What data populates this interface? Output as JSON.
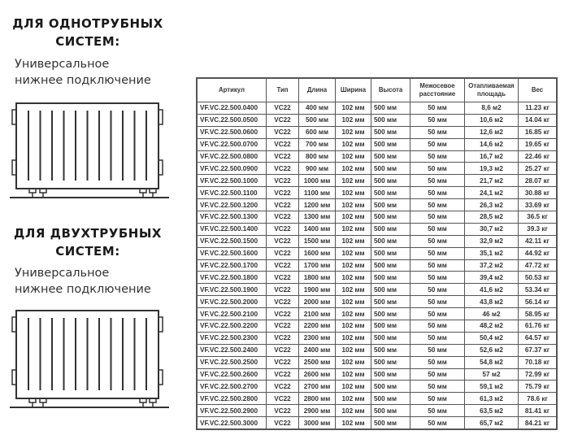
{
  "single_pipe": {
    "heading_line1": "ДЛЯ ОДНОТРУБНЫХ",
    "heading_line2": "СИСТЕМ:",
    "sub_line1": "Универсальное",
    "sub_line2": "нижнее подключение"
  },
  "double_pipe": {
    "heading_line1": "ДЛЯ ДВУХТРУБНЫХ",
    "heading_line2": "СИСТЕМ:",
    "sub_line1": "Универсальное",
    "sub_line2": "нижнее подключение"
  },
  "table": {
    "headers": [
      "Артикул",
      "Тип",
      "Длина",
      "Ширина",
      "Высота",
      "Межосевое расстояние",
      "Отапливаемая площадь",
      "Вес"
    ],
    "rows": [
      [
        "VF.VC.22.500.0400",
        "VC22",
        "400 мм",
        "102 мм",
        "500 мм",
        "50 мм",
        "8,6 м2",
        "11.23 кг"
      ],
      [
        "VF.VC.22.500.0500",
        "VC22",
        "500 мм",
        "102 мм",
        "500 мм",
        "50 мм",
        "10,6 м2",
        "14.04 кг"
      ],
      [
        "VF.VC.22.500.0600",
        "VC22",
        "600 мм",
        "102 мм",
        "500 мм",
        "50 мм",
        "12,6 м2",
        "16.85 кг"
      ],
      [
        "VF.VC.22.500.0700",
        "VC22",
        "700 мм",
        "102 мм",
        "500 мм",
        "50 мм",
        "14,6 м2",
        "19.65 кг"
      ],
      [
        "VF.VC.22.500.0800",
        "VC22",
        "800 мм",
        "102 мм",
        "500 мм",
        "50 мм",
        "16,7 м2",
        "22.46 кг"
      ],
      [
        "VF.VC.22.500.0900",
        "VC22",
        "900 мм",
        "102 мм",
        "500 мм",
        "50 мм",
        "19,3 м2",
        "25.27 кг"
      ],
      [
        "VF.VC.22.500.1000",
        "VC22",
        "1000 мм",
        "102 мм",
        "500 мм",
        "50 мм",
        "21,7 м2",
        "28.07 кг"
      ],
      [
        "VF.VC.22.500.1100",
        "VC22",
        "1100 мм",
        "102 мм",
        "500 мм",
        "50 мм",
        "24,1 м2",
        "30.88 кг"
      ],
      [
        "VF.VC.22.500.1200",
        "VC22",
        "1200 мм",
        "102 мм",
        "500 мм",
        "50 мм",
        "26,3 м2",
        "33.69 кг"
      ],
      [
        "VF.VC.22.500.1300",
        "VC22",
        "1300 мм",
        "102 мм",
        "500 мм",
        "50 мм",
        "28,5 м2",
        "36.5 кг"
      ],
      [
        "VF.VC.22.500.1400",
        "VC22",
        "1400 мм",
        "102 мм",
        "500 мм",
        "50 мм",
        "30,7 м2",
        "39.3 кг"
      ],
      [
        "VF.VC.22.500.1500",
        "VC22",
        "1500 мм",
        "102 мм",
        "500 мм",
        "50 мм",
        "32,9 м2",
        "42.11 кг"
      ],
      [
        "VF.VC.22.500.1600",
        "VC22",
        "1600 мм",
        "102 мм",
        "500 мм",
        "50 мм",
        "35,1 м2",
        "44.92 кг"
      ],
      [
        "VF.VC.22.500.1700",
        "VC22",
        "1700 мм",
        "102 мм",
        "500 мм",
        "50 мм",
        "37,2 м2",
        "47.72 кг"
      ],
      [
        "VF.VC.22.500.1800",
        "VC22",
        "1800 мм",
        "102 мм",
        "500 мм",
        "50 мм",
        "39,4 м2",
        "50.53 кг"
      ],
      [
        "VF.VC.22.500.1900",
        "VC22",
        "1900 мм",
        "102 мм",
        "500 мм",
        "50 мм",
        "41,6 м2",
        "53.34 кг"
      ],
      [
        "VF.VC.22.500.2000",
        "VC22",
        "2000 мм",
        "102 мм",
        "500 мм",
        "50 мм",
        "43,8 м2",
        "56.14 кг"
      ],
      [
        "VF.VC.22.500.2100",
        "VC22",
        "2100 мм",
        "102 мм",
        "500 мм",
        "50 мм",
        "46 м2",
        "58.95 кг"
      ],
      [
        "VF.VC.22.500.2200",
        "VC22",
        "2200 мм",
        "102 мм",
        "500 мм",
        "50 мм",
        "48,2 м2",
        "61.76 кг"
      ],
      [
        "VF.VC.22.500.2300",
        "VC22",
        "2300 мм",
        "102 мм",
        "500 мм",
        "50 мм",
        "50,4 м2",
        "64.57 кг"
      ],
      [
        "VF.VC.22.500.2400",
        "VC22",
        "2400 мм",
        "102 мм",
        "500 мм",
        "50 мм",
        "52,6 м2",
        "67.37 кг"
      ],
      [
        "VF.VC.22.500.2500",
        "VC22",
        "2500 мм",
        "102 мм",
        "500 мм",
        "50 мм",
        "54,8 м2",
        "70.18 кг"
      ],
      [
        "VF.VC.22.500.2600",
        "VC22",
        "2600 мм",
        "102 мм",
        "500 мм",
        "50 мм",
        "57 м2",
        "72.99 кг"
      ],
      [
        "VF.VC.22.500.2700",
        "VC22",
        "2700 мм",
        "102 мм",
        "500 мм",
        "50 мм",
        "59,1 м2",
        "75.79 кг"
      ],
      [
        "VF.VC.22.500.2800",
        "VC22",
        "2800 мм",
        "102 мм",
        "500 мм",
        "50 мм",
        "61,3 м2",
        "78.6 кг"
      ],
      [
        "VF.VC.22.500.2900",
        "VC22",
        "2900 мм",
        "102 мм",
        "500 мм",
        "50 мм",
        "63,5 м2",
        "81.41 кг"
      ],
      [
        "VF.VC.22.500.3000",
        "VC22",
        "3000 мм",
        "102 мм",
        "500 мм",
        "50 мм",
        "65,7 м2",
        "84.21 кг"
      ]
    ]
  }
}
